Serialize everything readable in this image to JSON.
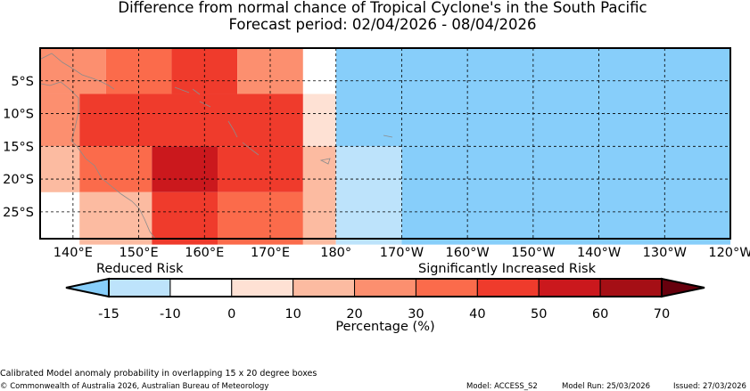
{
  "title": {
    "line1": "Difference from normal chance of Tropical Cyclone's in the South Pacific",
    "line2": "Forecast period: 02/04/2026 - 08/04/2026"
  },
  "map": {
    "lat_labels": [
      "5°S",
      "10°S",
      "15°S",
      "20°S",
      "25°S"
    ],
    "lon_labels": [
      "140°E",
      "150°E",
      "160°E",
      "170°E",
      "180°",
      "170°W",
      "160°W",
      "150°W",
      "140°W",
      "130°W",
      "120°W"
    ],
    "grid_cells": [
      {
        "lon": [
          135,
          145
        ],
        "lat": [
          -7,
          0
        ],
        "value": 22,
        "color": "#fc8f6f"
      },
      {
        "lon": [
          145,
          155
        ],
        "lat": [
          -7,
          0
        ],
        "value": 35,
        "color": "#fb6b4b"
      },
      {
        "lon": [
          155,
          165
        ],
        "lat": [
          -7,
          0
        ],
        "value": 45,
        "color": "#ef3b2c"
      },
      {
        "lon": [
          165,
          175
        ],
        "lat": [
          -7,
          0
        ],
        "value": 22,
        "color": "#fc8f6f"
      },
      {
        "lon": [
          175,
          180
        ],
        "lat": [
          -7,
          0
        ],
        "value": 0,
        "color": "#ffffff"
      },
      {
        "lon": [
          135,
          141
        ],
        "lat": [
          -15,
          -7
        ],
        "value": 22,
        "color": "#fc8f6f"
      },
      {
        "lon": [
          141,
          175
        ],
        "lat": [
          -15,
          -7
        ],
        "value": 45,
        "color": "#ef3b2c"
      },
      {
        "lon": [
          175,
          180
        ],
        "lat": [
          -15,
          -7
        ],
        "value": 5,
        "color": "#fee1d4"
      },
      {
        "lon": [
          135,
          141
        ],
        "lat": [
          -22,
          -15
        ],
        "value": 15,
        "color": "#fcbba1"
      },
      {
        "lon": [
          141,
          152
        ],
        "lat": [
          -22,
          -15
        ],
        "value": 35,
        "color": "#fb6b4b"
      },
      {
        "lon": [
          152,
          162
        ],
        "lat": [
          -22,
          -15
        ],
        "value": 55,
        "color": "#cb181d"
      },
      {
        "lon": [
          162,
          175
        ],
        "lat": [
          -22,
          -15
        ],
        "value": 45,
        "color": "#ef3b2c"
      },
      {
        "lon": [
          175,
          180
        ],
        "lat": [
          -22,
          -15
        ],
        "value": 15,
        "color": "#fcbba1"
      },
      {
        "lon": [
          141,
          152
        ],
        "lat": [
          -30,
          -22
        ],
        "value": 15,
        "color": "#fcbba1"
      },
      {
        "lon": [
          152,
          162
        ],
        "lat": [
          -30,
          -22
        ],
        "value": 45,
        "color": "#ef3b2c"
      },
      {
        "lon": [
          162,
          175
        ],
        "lat": [
          -30,
          -22
        ],
        "value": 35,
        "color": "#fb6b4b"
      },
      {
        "lon": [
          175,
          180
        ],
        "lat": [
          -30,
          -15
        ],
        "value": 15,
        "color": "#fcbba1"
      },
      {
        "lon": [
          180,
          190
        ],
        "lat": [
          -30,
          -15
        ],
        "value": -5,
        "color": "#bde3fb"
      },
      {
        "lon": [
          180,
          240
        ],
        "lat": [
          -15,
          0
        ],
        "value": -15,
        "color": "#87cefa"
      },
      {
        "lon": [
          190,
          240
        ],
        "lat": [
          -30,
          -15
        ],
        "value": -15,
        "color": "#87cefa"
      }
    ]
  },
  "legend": {
    "reduced_label": "Reduced Risk",
    "increased_label": "Significantly Increased Risk",
    "tick_labels": [
      "-15",
      "-10",
      "0",
      "10",
      "20",
      "30",
      "40",
      "50",
      "60",
      "70"
    ],
    "colors": [
      "#bde3fb",
      "#ffffff",
      "#fee1d4",
      "#fcbba1",
      "#fc8f6f",
      "#fb6b4b",
      "#ef3b2c",
      "#cb181d",
      "#a50f15"
    ],
    "low_extend_color": "#87cefa",
    "high_extend_color": "#67000d",
    "xlabel": "Percentage (%)"
  },
  "footer": {
    "description": "Calibrated Model anomaly probability in overlapping 15 x 20 degree boxes",
    "copyright": "© Commonwealth of Australia 2026, Australian Bureau of Meteorology",
    "model": "Model: ACCESS_S2",
    "model_run": "Model Run: 25/03/2026",
    "issued": "Issued: 27/03/2026"
  }
}
